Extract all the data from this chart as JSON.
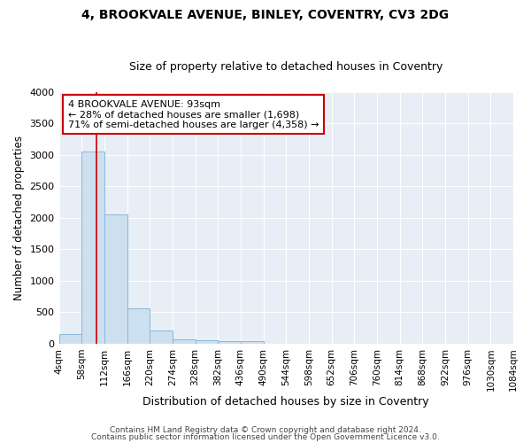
{
  "title1": "4, BROOKVALE AVENUE, BINLEY, COVENTRY, CV3 2DG",
  "title2": "Size of property relative to detached houses in Coventry",
  "xlabel": "Distribution of detached houses by size in Coventry",
  "ylabel": "Number of detached properties",
  "bin_labels": [
    "4sqm",
    "58sqm",
    "112sqm",
    "166sqm",
    "220sqm",
    "274sqm",
    "328sqm",
    "382sqm",
    "436sqm",
    "490sqm",
    "544sqm",
    "598sqm",
    "652sqm",
    "706sqm",
    "760sqm",
    "814sqm",
    "868sqm",
    "922sqm",
    "976sqm",
    "1030sqm",
    "1084sqm"
  ],
  "bar_values": [
    150,
    3060,
    2060,
    560,
    215,
    75,
    55,
    40,
    40,
    0,
    0,
    0,
    0,
    0,
    0,
    0,
    0,
    0,
    0,
    0
  ],
  "bar_color": "#cce0f0",
  "bar_edge_color": "#8ab8d8",
  "property_line_x": 93,
  "x_min": 4,
  "x_max": 1084,
  "bin_size": 54,
  "annotation_text": "4 BROOKVALE AVENUE: 93sqm\n← 28% of detached houses are smaller (1,698)\n71% of semi-detached houses are larger (4,358) →",
  "annotation_box_color": "#ffffff",
  "annotation_box_edge": "#cc0000",
  "footer1": "Contains HM Land Registry data © Crown copyright and database right 2024.",
  "footer2": "Contains public sector information licensed under the Open Government Licence v3.0.",
  "ylim": [
    0,
    4000
  ],
  "yticks": [
    0,
    500,
    1000,
    1500,
    2000,
    2500,
    3000,
    3500,
    4000
  ],
  "bg_color": "#ffffff",
  "plot_bg_color": "#e8eef5",
  "grid_color": "#ffffff",
  "title1_fontsize": 10,
  "title2_fontsize": 9
}
